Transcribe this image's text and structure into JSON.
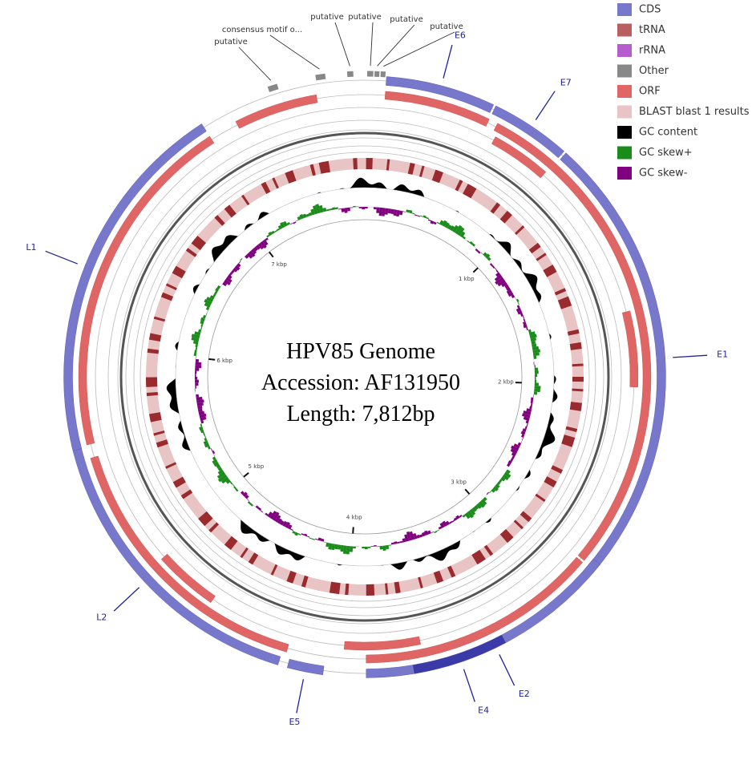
{
  "title_lines": [
    "HPV85 Genome",
    "Accession: AF131950",
    "Length: 7,812bp"
  ],
  "genome_length": 7812,
  "legend": [
    {
      "label": "CDS",
      "color": "#7777cc"
    },
    {
      "label": "tRNA",
      "color": "#b86060"
    },
    {
      "label": "rRNA",
      "color": "#b65ccc"
    },
    {
      "label": "Other",
      "color": "#888888"
    },
    {
      "label": "ORF",
      "color": "#e06666"
    },
    {
      "label": "BLAST blast 1 results",
      "color": "#e8c4c4"
    },
    {
      "label": "GC content",
      "color": "#000000"
    },
    {
      "label": "GC skew+",
      "color": "#1a8c1a"
    },
    {
      "label": "GC skew-",
      "color": "#800080"
    }
  ],
  "features": [
    {
      "name": "E6",
      "start": 90,
      "end": 550,
      "color": "#7777cc"
    },
    {
      "name": "E7",
      "start": 560,
      "end": 900,
      "color": "#7777cc"
    },
    {
      "name": "E1",
      "start": 910,
      "end": 2840,
      "color": "#7777cc"
    },
    {
      "name": "E2",
      "start": 2790,
      "end": 3900,
      "color": "#7777cc"
    },
    {
      "name": "E4",
      "start": 3300,
      "end": 3700,
      "color": "#3a3aa8"
    },
    {
      "name": "E5",
      "start": 4080,
      "end": 4230,
      "color": "#7777cc"
    },
    {
      "name": "L2",
      "start": 4270,
      "end": 5580,
      "color": "#7777cc"
    },
    {
      "name": "L1",
      "start": 5550,
      "end": 7100,
      "color": "#7777cc"
    }
  ],
  "other_features": [
    {
      "name": "putative",
      "start": 7410,
      "end": 7450
    },
    {
      "name": "consensus motif o...",
      "start": 7610,
      "end": 7650
    },
    {
      "name": "putative",
      "start": 7740,
      "end": 7765
    },
    {
      "name": "putative",
      "start": 10,
      "end": 35
    },
    {
      "name": "putative",
      "start": 40,
      "end": 60
    },
    {
      "name": "putative",
      "start": 65,
      "end": 85
    }
  ],
  "orf_rings": [
    [
      [
        7230,
        7600
      ],
      [
        90,
        560
      ],
      [
        600,
        2820
      ],
      [
        2830,
        3900
      ],
      [
        4250,
        5500
      ],
      [
        5560,
        7100
      ]
    ],
    [
      [
        620,
        900
      ],
      [
        1650,
        2000
      ],
      [
        3650,
        4000
      ],
      [
        4650,
        4950
      ]
    ]
  ],
  "ticks": [
    {
      "value": 1000,
      "label": "1 kbp"
    },
    {
      "value": 2000,
      "label": "2 kbp"
    },
    {
      "value": 3000,
      "label": "3 kbp"
    },
    {
      "value": 4000,
      "label": "4 kbp"
    },
    {
      "value": 5000,
      "label": "5 kbp"
    },
    {
      "value": 6000,
      "label": "6 kbp"
    },
    {
      "value": 7000,
      "label": "7 kbp"
    }
  ]
}
